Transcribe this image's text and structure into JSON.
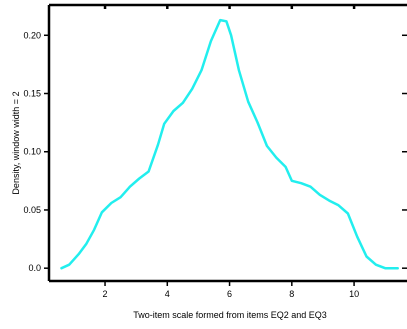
{
  "chart_data": {
    "type": "line",
    "title": "",
    "xlabel": "Two-item scale formed from items EQ2 and EQ3",
    "ylabel": "Density, window width = 2",
    "xlim": [
      0.2,
      11.7
    ],
    "ylim": [
      -0.011,
      0.226
    ],
    "grid": false,
    "legend": "none",
    "xticks": [
      {
        "value": 2,
        "label": "2"
      },
      {
        "value": 4,
        "label": "4"
      },
      {
        "value": 6,
        "label": "6"
      },
      {
        "value": 8,
        "label": "8"
      },
      {
        "value": 10,
        "label": "10"
      }
    ],
    "yticks": [
      {
        "value": 0.0,
        "label": "0.0"
      },
      {
        "value": 0.05,
        "label": "0.05"
      },
      {
        "value": 0.1,
        "label": "0.10"
      },
      {
        "value": 0.15,
        "label": "0.15"
      },
      {
        "value": 0.2,
        "label": "0.20"
      }
    ],
    "top_ticks": [
      2,
      4,
      6,
      8,
      10
    ],
    "right_ticks": [
      0.0,
      0.05,
      0.1,
      0.15,
      0.2
    ],
    "series": [
      {
        "color": "#22eeee",
        "x": [
          0.6,
          0.85,
          1.15,
          1.4,
          1.65,
          1.9,
          2.2,
          2.5,
          2.8,
          3.1,
          3.4,
          3.7,
          3.9,
          4.2,
          4.5,
          4.8,
          5.1,
          5.4,
          5.7,
          5.9,
          6.05,
          6.3,
          6.6,
          6.9,
          7.2,
          7.5,
          7.8,
          8.0,
          8.3,
          8.6,
          8.9,
          9.2,
          9.5,
          9.8,
          10.1,
          10.4,
          10.7,
          11.0,
          11.2,
          11.4
        ],
        "y": [
          0.0,
          0.003,
          0.012,
          0.021,
          0.033,
          0.048,
          0.056,
          0.061,
          0.07,
          0.077,
          0.083,
          0.106,
          0.124,
          0.135,
          0.142,
          0.154,
          0.17,
          0.195,
          0.213,
          0.212,
          0.2,
          0.17,
          0.143,
          0.125,
          0.105,
          0.095,
          0.087,
          0.075,
          0.073,
          0.07,
          0.063,
          0.058,
          0.054,
          0.047,
          0.027,
          0.01,
          0.003,
          0.0,
          0.0,
          0.0
        ]
      }
    ]
  }
}
